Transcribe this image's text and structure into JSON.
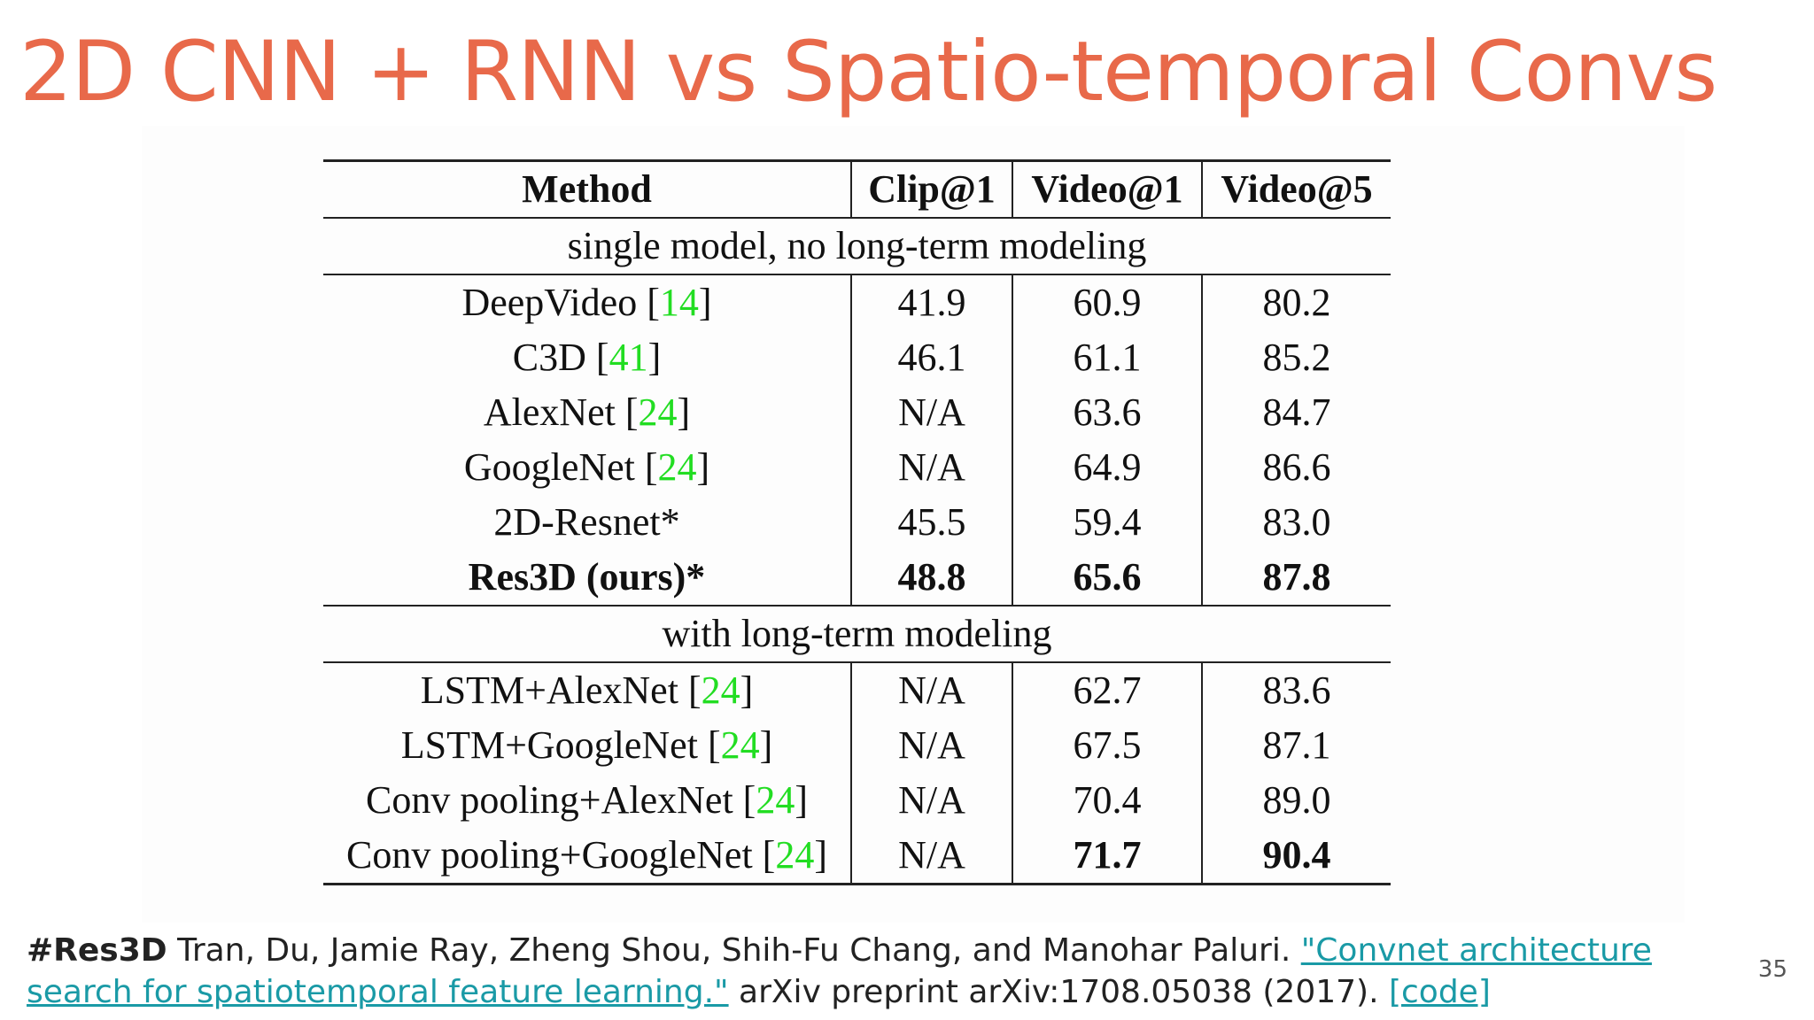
{
  "title": "2D CNN + RNN vs Spatio-temporal Convs",
  "table": {
    "headers": [
      "Method",
      "Clip@1",
      "Video@1",
      "Video@5"
    ],
    "sections": [
      {
        "label": "single model, no long-term modeling",
        "rows": [
          {
            "name": "DeepVideo",
            "ref": "14",
            "clip1": "41.9",
            "video1": "60.9",
            "video5": "80.2"
          },
          {
            "name": "C3D",
            "ref": "41",
            "clip1": "46.1",
            "video1": "61.1",
            "video5": "85.2"
          },
          {
            "name": "AlexNet",
            "ref": "24",
            "clip1": "N/A",
            "video1": "63.6",
            "video5": "84.7"
          },
          {
            "name": "GoogleNet",
            "ref": "24",
            "clip1": "N/A",
            "video1": "64.9",
            "video5": "86.6"
          },
          {
            "name": "2D-Resnet*",
            "ref": "",
            "clip1": "45.5",
            "video1": "59.4",
            "video5": "83.0"
          },
          {
            "name": "Res3D (ours)*",
            "ref": "",
            "clip1": "48.8",
            "video1": "65.6",
            "video5": "87.8"
          }
        ]
      },
      {
        "label": "with long-term modeling",
        "rows": [
          {
            "name": "LSTM+AlexNet",
            "ref": "24",
            "clip1": "N/A",
            "video1": "62.7",
            "video5": "83.6"
          },
          {
            "name": "LSTM+GoogleNet",
            "ref": "24",
            "clip1": "N/A",
            "video1": "67.5",
            "video5": "87.1"
          },
          {
            "name": "Conv pooling+AlexNet",
            "ref": "24",
            "clip1": "N/A",
            "video1": "70.4",
            "video5": "89.0"
          },
          {
            "name": "Conv pooling+GoogleNet",
            "ref": "24",
            "clip1": "N/A",
            "video1": "71.7",
            "video5": "90.4"
          }
        ]
      }
    ]
  },
  "footer": {
    "tag": "#Res3D",
    "authors": " Tran, Du, Jamie Ray, Zheng Shou, Shih-Fu Chang, and Manohar Paluri. ",
    "paper_link": "\"Convnet architecture search for spatiotemporal feature learning.\"",
    "venue": " arXiv preprint arXiv:1708.05038 (2017). ",
    "code_link": "[code]"
  },
  "page_number": "35",
  "colors": {
    "title": "#E8694A",
    "reference": "#22dd22",
    "link": "#1a9aa6"
  }
}
